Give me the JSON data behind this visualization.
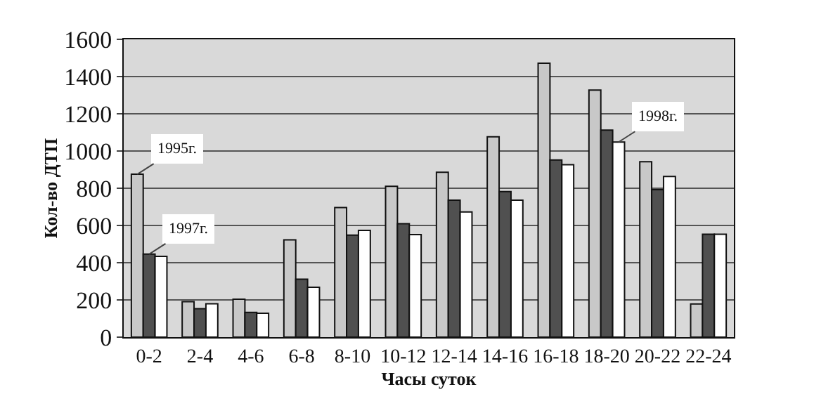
{
  "chart_data": {
    "type": "bar",
    "xlabel": "Часы суток",
    "ylabel": "Кол-во ДТП",
    "categories": [
      "0-2",
      "2-4",
      "4-6",
      "6-8",
      "8-10",
      "10-12",
      "12-14",
      "14-16",
      "16-18",
      "18-20",
      "20-22",
      "22-24"
    ],
    "series": [
      {
        "color": "#c8c8c8",
        "values": [
          875,
          191,
          204,
          523,
          696,
          810,
          886,
          1076,
          1472,
          1327,
          942,
          178
        ]
      },
      {
        "color": "#505050",
        "values": [
          446,
          153,
          133,
          311,
          548,
          609,
          736,
          782,
          952,
          1112,
          792,
          553
        ]
      },
      {
        "color": "#ffffff",
        "values": [
          434,
          179,
          128,
          268,
          574,
          551,
          673,
          736,
          926,
          1048,
          863,
          553
        ]
      }
    ],
    "ylim": [
      0,
      1600
    ],
    "yticks": [
      0,
      200,
      400,
      600,
      800,
      1000,
      1200,
      1400,
      1600
    ],
    "grid": "y",
    "annotations": [
      {
        "text": "1995г.",
        "x": "0-2",
        "y": 875
      },
      {
        "text": "1997г.",
        "x": "0-2",
        "y": 446
      },
      {
        "text": "1998г.",
        "x": "18-20",
        "y": 1048
      }
    ]
  }
}
